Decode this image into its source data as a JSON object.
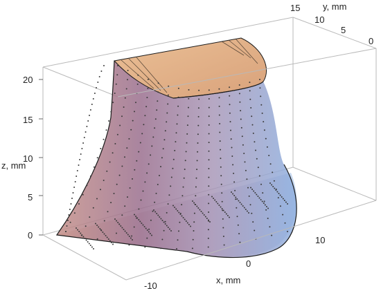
{
  "chart_data": {
    "type": "surface3d",
    "title": "",
    "axes": {
      "x": {
        "label": "x, mm",
        "ticks": [
          "-10",
          "0",
          "10"
        ],
        "range": [
          -18,
          18
        ]
      },
      "y": {
        "label": "y, mm",
        "ticks": [
          "0",
          "5",
          "10",
          "15"
        ],
        "range": [
          0,
          15
        ]
      },
      "z": {
        "label": "z, mm",
        "ticks": [
          "0",
          "5",
          "10",
          "15",
          "20"
        ],
        "range": [
          0,
          21
        ]
      }
    },
    "bounding_box": true,
    "surfaces": [
      {
        "name": "",
        "description_color": "#d8a081",
        "kind": "top cap"
      },
      {
        "name": "",
        "description_color": "#8a6a95",
        "kind": "side wall"
      },
      {
        "name": "",
        "description_color": "#9cb6dc",
        "kind": "side wall"
      }
    ],
    "colors": {
      "cap": "#e8b48c",
      "wall_left": "#b9848f",
      "wall_mid": "#a890b0",
      "wall_right": "#97b2dc",
      "points": "#3a3a3a"
    }
  }
}
